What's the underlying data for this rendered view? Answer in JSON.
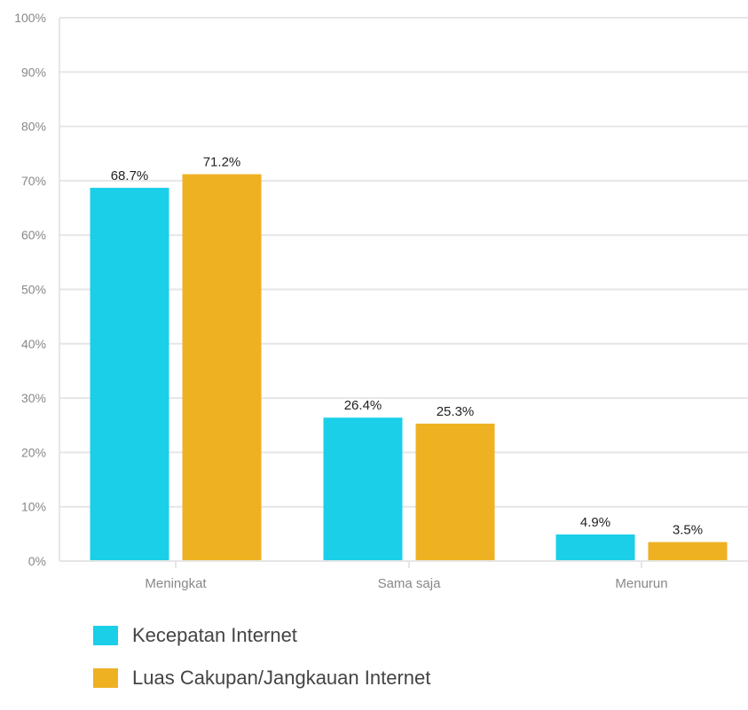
{
  "chart_data": {
    "type": "bar",
    "categories": [
      "Meningkat",
      "Sama saja",
      "Menurun"
    ],
    "series": [
      {
        "name": "Kecepatan Internet",
        "values": [
          68.7,
          26.4,
          4.9
        ],
        "labels": [
          "68.7%",
          "26.4%",
          "4.9%"
        ],
        "color": "#1bcfe9"
      },
      {
        "name": "Luas Cakupan/Jangkauan Internet",
        "values": [
          71.2,
          25.3,
          3.5
        ],
        "labels": [
          "71.2%",
          "25.3%",
          "3.5%"
        ],
        "color": "#eeb122"
      }
    ],
    "ylim": [
      0,
      100
    ],
    "yticks": [
      0,
      10,
      20,
      30,
      40,
      50,
      60,
      70,
      80,
      90,
      100
    ],
    "ytick_labels": [
      "0%",
      "10%",
      "20%",
      "30%",
      "40%",
      "50%",
      "60%",
      "70%",
      "80%",
      "90%",
      "100%"
    ],
    "title": "",
    "xlabel": "",
    "ylabel": "",
    "grid": true,
    "legend_position": "bottom-left"
  }
}
